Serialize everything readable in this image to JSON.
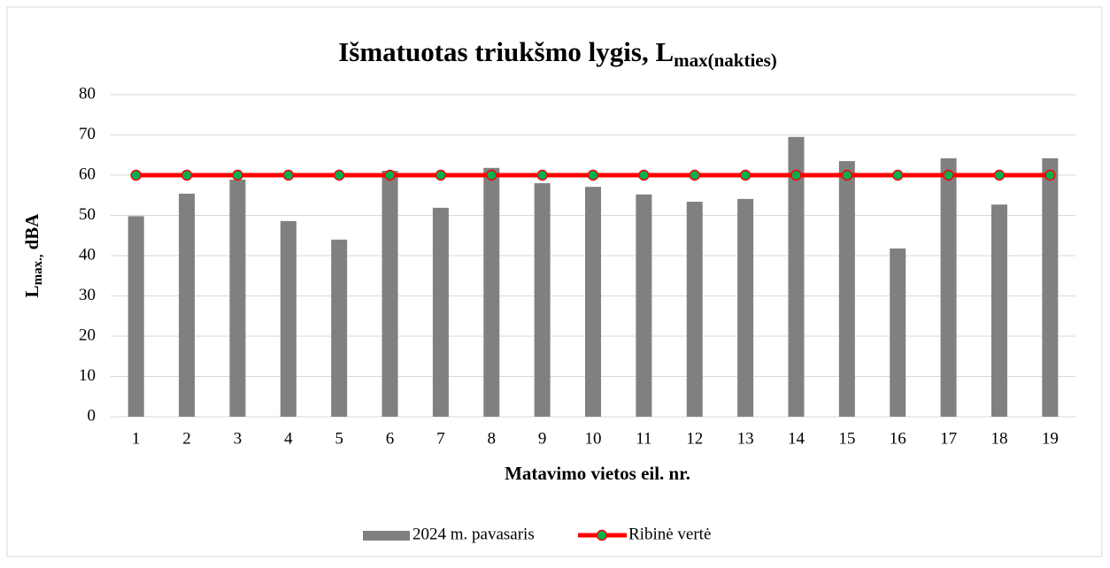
{
  "chart_data": {
    "type": "bar_line",
    "title": {
      "main": "Išmatuotas triukšmo lygis, L",
      "sub": "max(nakties)"
    },
    "xlabel": "Matavimo vietos eil. nr.",
    "ylabel": {
      "main": "L",
      "sub": "max.,",
      "tail": "dBA"
    },
    "categories": [
      "1",
      "2",
      "3",
      "4",
      "5",
      "6",
      "7",
      "8",
      "9",
      "10",
      "11",
      "12",
      "13",
      "14",
      "15",
      "16",
      "17",
      "18",
      "19"
    ],
    "series": [
      {
        "name": "2024 m. pavasaris",
        "type": "bar",
        "color": "#808080",
        "values": [
          49.8,
          55.4,
          58.9,
          48.6,
          44.0,
          61.1,
          51.9,
          61.8,
          58.0,
          57.1,
          55.2,
          53.4,
          54.1,
          69.5,
          63.5,
          41.8,
          64.2,
          52.7,
          64.2
        ]
      },
      {
        "name": "Ribinė vertė",
        "type": "line",
        "color": "#ff0000",
        "marker_color": "#00b050",
        "values": [
          60,
          60,
          60,
          60,
          60,
          60,
          60,
          60,
          60,
          60,
          60,
          60,
          60,
          60,
          60,
          60,
          60,
          60,
          60
        ]
      }
    ],
    "ylim": [
      0,
      80
    ],
    "yticks": [
      0,
      10,
      20,
      30,
      40,
      50,
      60,
      70,
      80
    ],
    "grid": true,
    "legend": "bottom"
  }
}
